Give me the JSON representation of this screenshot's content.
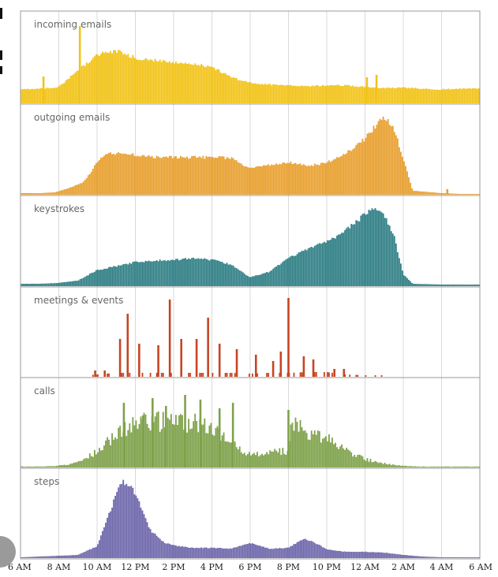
{
  "chart_data": {
    "type": "bar",
    "title": "",
    "xlabel": "",
    "ylabel": "",
    "x_ticks": [
      "6 AM",
      "8 AM",
      "10 AM",
      "12 PM",
      "2 PM",
      "4 PM",
      "6 PM",
      "8 PM",
      "10 PM",
      "12 AM",
      "2 AM",
      "4 AM",
      "6 AM"
    ],
    "x_range_hours": [
      0,
      24
    ],
    "grid": "vertical",
    "panels": [
      {
        "name": "incoming emails",
        "color": "#f2c318",
        "profile": [
          [
            0,
            0.17
          ],
          [
            1,
            0.18
          ],
          [
            2,
            0.2
          ],
          [
            3,
            0.4
          ],
          [
            4,
            0.6
          ],
          [
            5,
            0.65
          ],
          [
            6,
            0.56
          ],
          [
            7,
            0.53
          ],
          [
            8,
            0.5
          ],
          [
            9,
            0.49
          ],
          [
            10,
            0.45
          ],
          [
            11,
            0.32
          ],
          [
            12,
            0.25
          ],
          [
            13,
            0.23
          ],
          [
            14,
            0.22
          ],
          [
            15,
            0.21
          ],
          [
            16,
            0.22
          ],
          [
            17,
            0.22
          ],
          [
            18,
            0.2
          ],
          [
            19,
            0.19
          ],
          [
            20,
            0.19
          ],
          [
            21,
            0.18
          ],
          [
            22,
            0.17
          ],
          [
            23,
            0.18
          ],
          [
            24,
            0.18
          ]
        ],
        "spikes": [
          [
            1.2,
            0.33
          ],
          [
            3.1,
            0.95
          ],
          [
            18.1,
            0.32
          ],
          [
            18.6,
            0.35
          ]
        ]
      },
      {
        "name": "outgoing emails",
        "color": "#e8a02f",
        "profile": [
          [
            0,
            0.02
          ],
          [
            1,
            0.02
          ],
          [
            1.8,
            0.03
          ],
          [
            2.5,
            0.08
          ],
          [
            3.3,
            0.16
          ],
          [
            4,
            0.4
          ],
          [
            4.5,
            0.52
          ],
          [
            5,
            0.52
          ],
          [
            6,
            0.5
          ],
          [
            7,
            0.47
          ],
          [
            8,
            0.47
          ],
          [
            9,
            0.47
          ],
          [
            10,
            0.47
          ],
          [
            11,
            0.46
          ],
          [
            12,
            0.33
          ],
          [
            13,
            0.37
          ],
          [
            14,
            0.41
          ],
          [
            15,
            0.36
          ],
          [
            16,
            0.4
          ],
          [
            17,
            0.52
          ],
          [
            18,
            0.7
          ],
          [
            18.5,
            0.85
          ],
          [
            19,
            0.97
          ],
          [
            19.5,
            0.85
          ],
          [
            20,
            0.45
          ],
          [
            20.5,
            0.05
          ],
          [
            21,
            0.04
          ],
          [
            22,
            0.02
          ],
          [
            23,
            0.01
          ],
          [
            24,
            0.01
          ]
        ],
        "spikes": [
          [
            22.3,
            0.07
          ]
        ]
      },
      {
        "name": "keystrokes",
        "color": "#2f7f85",
        "profile": [
          [
            0,
            0.03
          ],
          [
            1,
            0.03
          ],
          [
            2,
            0.04
          ],
          [
            3,
            0.07
          ],
          [
            4,
            0.2
          ],
          [
            5,
            0.25
          ],
          [
            6,
            0.3
          ],
          [
            7,
            0.32
          ],
          [
            8,
            0.33
          ],
          [
            9,
            0.35
          ],
          [
            10,
            0.33
          ],
          [
            11,
            0.27
          ],
          [
            12,
            0.11
          ],
          [
            13,
            0.18
          ],
          [
            14,
            0.35
          ],
          [
            15,
            0.47
          ],
          [
            16,
            0.55
          ],
          [
            17,
            0.7
          ],
          [
            18,
            0.9
          ],
          [
            18.5,
            0.98
          ],
          [
            19,
            0.88
          ],
          [
            19.5,
            0.65
          ],
          [
            20,
            0.15
          ],
          [
            20.5,
            0.03
          ],
          [
            22,
            0.02
          ],
          [
            23,
            0.02
          ],
          [
            24,
            0.02
          ]
        ],
        "spikes": []
      },
      {
        "name": "meetings & events",
        "color": "#c64523",
        "profile": [
          [
            0,
            0.01
          ],
          [
            3,
            0.01
          ],
          [
            4,
            0.03
          ],
          [
            5,
            0.05
          ],
          [
            6,
            0.05
          ],
          [
            7,
            0.05
          ],
          [
            8,
            0.05
          ],
          [
            9,
            0.05
          ],
          [
            10,
            0.05
          ],
          [
            11,
            0.05
          ],
          [
            12,
            0.04
          ],
          [
            13,
            0.05
          ],
          [
            14,
            0.05
          ],
          [
            15,
            0.06
          ],
          [
            16,
            0.06
          ],
          [
            17,
            0.03
          ],
          [
            18,
            0.02
          ],
          [
            19,
            0.02
          ],
          [
            20,
            0.01
          ],
          [
            21,
            0.01
          ],
          [
            22,
            0.01
          ],
          [
            23,
            0.01
          ],
          [
            24,
            0.01
          ]
        ],
        "spikes": [
          [
            3.9,
            0.08
          ],
          [
            4.4,
            0.08
          ],
          [
            5.2,
            0.48
          ],
          [
            5.6,
            0.8
          ],
          [
            6.2,
            0.42
          ],
          [
            7.2,
            0.4
          ],
          [
            7.8,
            0.98
          ],
          [
            8.4,
            0.48
          ],
          [
            9.2,
            0.48
          ],
          [
            9.8,
            0.75
          ],
          [
            10.4,
            0.42
          ],
          [
            11.3,
            0.35
          ],
          [
            12.3,
            0.28
          ],
          [
            13.2,
            0.2
          ],
          [
            13.6,
            0.32
          ],
          [
            14.0,
            1.0
          ],
          [
            14.8,
            0.26
          ],
          [
            15.3,
            0.22
          ],
          [
            16.4,
            0.1
          ],
          [
            16.9,
            0.1
          ]
        ]
      },
      {
        "name": "calls",
        "color": "#7fa24b",
        "profile": [
          [
            0,
            0.01
          ],
          [
            1,
            0.01
          ],
          [
            2,
            0.02
          ],
          [
            3,
            0.06
          ],
          [
            3.5,
            0.12
          ],
          [
            4,
            0.2
          ],
          [
            5,
            0.4
          ],
          [
            6,
            0.52
          ],
          [
            7,
            0.55
          ],
          [
            8,
            0.55
          ],
          [
            9,
            0.55
          ],
          [
            10,
            0.45
          ],
          [
            11,
            0.3
          ],
          [
            12,
            0.15
          ],
          [
            13,
            0.18
          ],
          [
            14,
            0.2
          ],
          [
            14.2,
            0.6
          ],
          [
            15,
            0.38
          ],
          [
            16,
            0.35
          ],
          [
            17,
            0.2
          ],
          [
            18,
            0.1
          ],
          [
            19,
            0.05
          ],
          [
            19.5,
            0.03
          ],
          [
            20,
            0.02
          ],
          [
            21,
            0.01
          ],
          [
            22,
            0.01
          ],
          [
            23,
            0.01
          ],
          [
            24,
            0.01
          ]
        ],
        "spikes": [
          [
            5.4,
            0.82
          ],
          [
            6.4,
            0.66
          ],
          [
            6.9,
            0.88
          ],
          [
            7.6,
            0.78
          ],
          [
            8.6,
            0.92
          ],
          [
            9.4,
            0.86
          ],
          [
            10.4,
            0.75
          ],
          [
            11.1,
            0.82
          ],
          [
            14.0,
            0.73
          ]
        ]
      },
      {
        "name": "steps",
        "color": "#6e67ab",
        "profile": [
          [
            0,
            0.01
          ],
          [
            1,
            0.02
          ],
          [
            2,
            0.03
          ],
          [
            3,
            0.04
          ],
          [
            4,
            0.15
          ],
          [
            5,
            0.8
          ],
          [
            5.3,
            0.98
          ],
          [
            5.7,
            0.94
          ],
          [
            6.2,
            0.72
          ],
          [
            6.8,
            0.35
          ],
          [
            7.5,
            0.2
          ],
          [
            8,
            0.16
          ],
          [
            9,
            0.13
          ],
          [
            10,
            0.13
          ],
          [
            11,
            0.12
          ],
          [
            12,
            0.19
          ],
          [
            13,
            0.12
          ],
          [
            14,
            0.13
          ],
          [
            14.8,
            0.25
          ],
          [
            15.5,
            0.18
          ],
          [
            16,
            0.11
          ],
          [
            17,
            0.08
          ],
          [
            18,
            0.08
          ],
          [
            19,
            0.07
          ],
          [
            20,
            0.04
          ],
          [
            21,
            0.02
          ],
          [
            22,
            0.01
          ],
          [
            23,
            0.01
          ],
          [
            24,
            0.01
          ]
        ],
        "spikes": []
      }
    ]
  }
}
